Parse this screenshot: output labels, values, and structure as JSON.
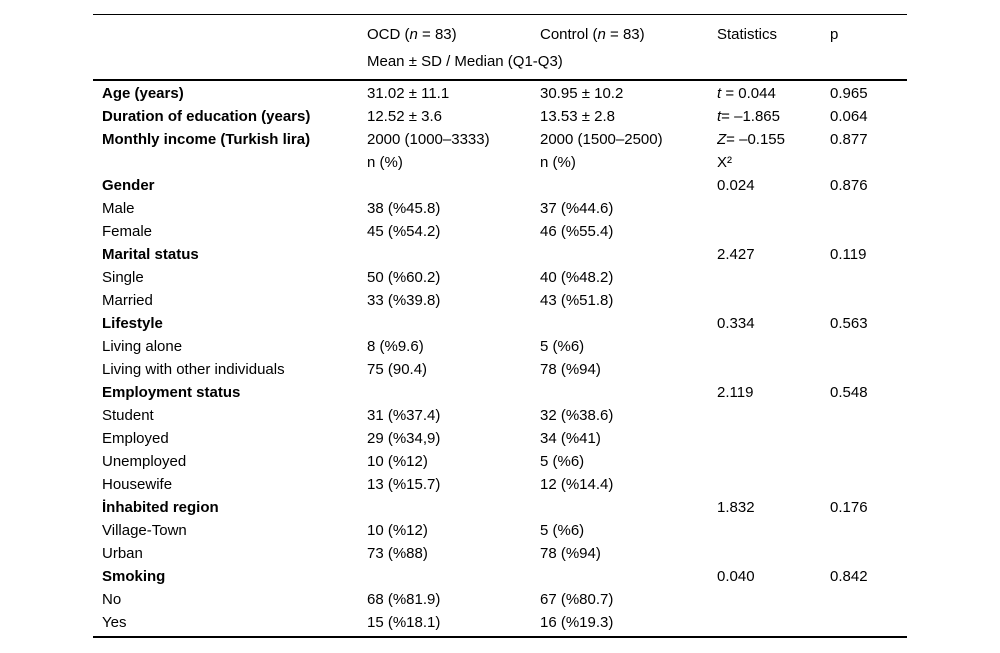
{
  "table": {
    "header": {
      "label": "",
      "ocd": {
        "pre": "OCD (",
        "var": "n",
        "post": " = 83)"
      },
      "control": {
        "pre": "Control (",
        "var": "n",
        "post": " = 83)"
      },
      "statistics": "Statistics",
      "p": "p",
      "subheader": "Mean ± SD / Median (Q1-Q3)"
    },
    "rows": [
      {
        "label": "Age (years)",
        "ocd": "31.02 ± 11.1",
        "control": "30.95 ± 10.2",
        "stat_var": "t",
        "stat_rest": " = 0.044",
        "p": "0.965"
      },
      {
        "label": "Duration of education (years)",
        "ocd": "12.52 ± 3.6",
        "control": "13.53 ± 2.8",
        "stat_var": "t",
        "stat_rest": "= –1.865",
        "p": "0.064"
      },
      {
        "label": "Monthly income (Turkish lira)",
        "ocd": "2000 (1000–3333)",
        "control": "2000 (1500–2500)",
        "stat_var": "Z",
        "stat_rest": "= –0.155",
        "p": "0.877"
      },
      {
        "label": "",
        "ocd": "n (%)",
        "control": "n (%)",
        "stat_var": "",
        "stat_rest": "X²",
        "p": ""
      },
      {
        "label": "Gender",
        "ocd": "",
        "control": "",
        "stat_var": "",
        "stat_rest": "0.024",
        "p": "0.876"
      },
      {
        "label": "Male",
        "ocd": "38 (%45.8)",
        "control": "37 (%44.6)",
        "stat_var": "",
        "stat_rest": "",
        "p": ""
      },
      {
        "label": "Female",
        "ocd": "45 (%54.2)",
        "control": "46 (%55.4)",
        "stat_var": "",
        "stat_rest": "",
        "p": ""
      },
      {
        "label": "Marital status",
        "ocd": "",
        "control": "",
        "stat_var": "",
        "stat_rest": "2.427",
        "p": "0.119"
      },
      {
        "label": "Single",
        "ocd": "50 (%60.2)",
        "control": "40 (%48.2)",
        "stat_var": "",
        "stat_rest": "",
        "p": ""
      },
      {
        "label": "Married",
        "ocd": "33 (%39.8)",
        "control": "43 (%51.8)",
        "stat_var": "",
        "stat_rest": "",
        "p": ""
      },
      {
        "label": "Lifestyle",
        "ocd": "",
        "control": "",
        "stat_var": "",
        "stat_rest": "0.334",
        "p": "0.563"
      },
      {
        "label": "Living alone",
        "ocd": "8 (%9.6)",
        "control": "5 (%6)",
        "stat_var": "",
        "stat_rest": "",
        "p": ""
      },
      {
        "label": "Living with other individuals",
        "ocd": "75 (90.4)",
        "control": "78 (%94)",
        "stat_var": "",
        "stat_rest": "",
        "p": ""
      },
      {
        "label": "Employment status",
        "ocd": "",
        "control": "",
        "stat_var": "",
        "stat_rest": "2.119",
        "p": "0.548"
      },
      {
        "label": "Student",
        "ocd": "31 (%37.4)",
        "control": "32 (%38.6)",
        "stat_var": "",
        "stat_rest": "",
        "p": ""
      },
      {
        "label": "Employed",
        "ocd": "29 (%34,9)",
        "control": "34 (%41)",
        "stat_var": "",
        "stat_rest": "",
        "p": ""
      },
      {
        "label": "Unemployed",
        "ocd": "10 (%12)",
        "control": "5 (%6)",
        "stat_var": "",
        "stat_rest": "",
        "p": ""
      },
      {
        "label": "Housewife",
        "ocd": "13 (%15.7)",
        "control": "12 (%14.4)",
        "stat_var": "",
        "stat_rest": "",
        "p": ""
      },
      {
        "label": "İnhabited region",
        "ocd": "",
        "control": "",
        "stat_var": "",
        "stat_rest": "1.832",
        "p": "0.176"
      },
      {
        "label": "Village-Town",
        "ocd": "10 (%12)",
        "control": "5 (%6)",
        "stat_var": "",
        "stat_rest": "",
        "p": ""
      },
      {
        "label": "Urban",
        "ocd": "73 (%88)",
        "control": "78 (%94)",
        "stat_var": "",
        "stat_rest": "",
        "p": ""
      },
      {
        "label": "Smoking",
        "ocd": "",
        "control": "",
        "stat_var": "",
        "stat_rest": "0.040",
        "p": "0.842"
      },
      {
        "label": "No",
        "ocd": "68 (%81.9)",
        "control": "67 (%80.7)",
        "stat_var": "",
        "stat_rest": "",
        "p": ""
      },
      {
        "label": "Yes",
        "ocd": "15 (%18.1)",
        "control": "16 (%19.3)",
        "stat_var": "",
        "stat_rest": "",
        "p": ""
      }
    ]
  }
}
